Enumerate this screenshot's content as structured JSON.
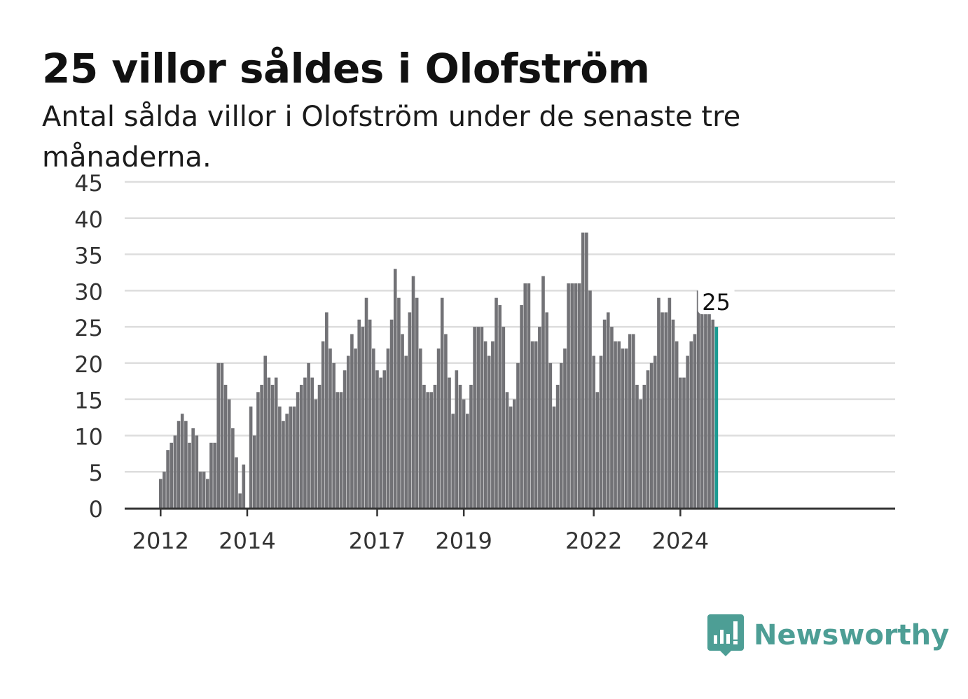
{
  "header": {
    "title": "25 villor såldes i Olofström",
    "subtitle": "Antal sålda villor i Olofström under de senaste tre månaderna."
  },
  "brand": {
    "name": "Newsworthy",
    "icon": "newsworthy-logo-icon",
    "color": "#4d9e95"
  },
  "chart_data": {
    "type": "bar",
    "xlabel": "",
    "ylabel": "",
    "ylim": [
      0,
      45
    ],
    "yticks": [
      0,
      5,
      10,
      15,
      20,
      25,
      30,
      35,
      40,
      45
    ],
    "xticks": [
      "2012",
      "2014",
      "2017",
      "2019",
      "2022",
      "2024"
    ],
    "grid": true,
    "start_period": "2012-01",
    "frequency": "monthly",
    "highlight_label": "25",
    "colors": {
      "bar": "#727276",
      "highlight": "#1a9b92",
      "grid": "#dddddd",
      "axis": "#333333"
    },
    "values": [
      4,
      5,
      8,
      9,
      10,
      12,
      13,
      12,
      9,
      11,
      10,
      5,
      5,
      4,
      9,
      9,
      20,
      20,
      17,
      15,
      11,
      7,
      2,
      6,
      0,
      14,
      10,
      16,
      17,
      21,
      18,
      17,
      18,
      14,
      12,
      13,
      14,
      14,
      16,
      17,
      18,
      20,
      18,
      15,
      17,
      23,
      27,
      22,
      20,
      16,
      16,
      19,
      21,
      24,
      22,
      26,
      25,
      29,
      26,
      22,
      19,
      18,
      19,
      22,
      26,
      33,
      29,
      24,
      21,
      27,
      32,
      29,
      22,
      17,
      16,
      16,
      17,
      22,
      29,
      24,
      18,
      13,
      19,
      17,
      15,
      13,
      17,
      25,
      25,
      25,
      23,
      21,
      23,
      29,
      28,
      25,
      16,
      14,
      15,
      20,
      28,
      31,
      31,
      23,
      23,
      25,
      32,
      27,
      20,
      14,
      17,
      20,
      22,
      31,
      31,
      31,
      31,
      38,
      38,
      30,
      21,
      16,
      21,
      26,
      27,
      25,
      23,
      23,
      22,
      22,
      24,
      24,
      17,
      15,
      17,
      19,
      20,
      21,
      29,
      27,
      27,
      29,
      26,
      23,
      18,
      18,
      21,
      23,
      24,
      30,
      30,
      28,
      28,
      26,
      25
    ]
  }
}
